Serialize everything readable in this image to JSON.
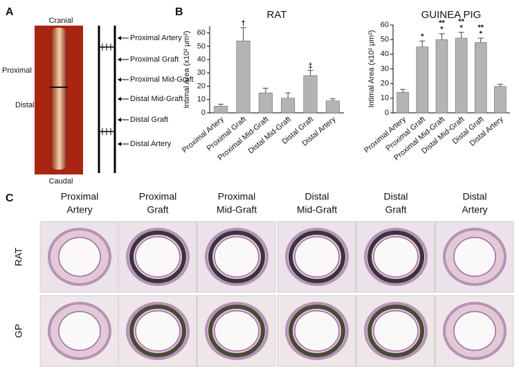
{
  "panel_a": {
    "letter": "A",
    "top": "Cranial",
    "bottom": "Caudal",
    "side_labels": [
      "Proximal",
      "Distal"
    ],
    "segments": [
      "Proximal Artery",
      "Proximal Graft",
      "Proximal Mid-Graft",
      "Distal Mid-Graft",
      "Distal Graft",
      "Distal Artery"
    ]
  },
  "panel_b": {
    "letter": "B"
  },
  "chart_data": [
    {
      "type": "bar",
      "title": "RAT",
      "y_label": "Intimal Area (x10² μm²)",
      "categories": [
        "Proximal Artery",
        "Proximal Graft",
        "Proximal Mid-Graft",
        "Distal Mid-Graft",
        "Distal Graft",
        "Distal Artery"
      ],
      "values": [
        5,
        54,
        15,
        11,
        28,
        9
      ],
      "errors": [
        1.5,
        10,
        3.5,
        4,
        4,
        1.5
      ],
      "annotations": [
        null,
        [
          "†"
        ],
        null,
        null,
        [
          "‡"
        ],
        null
      ],
      "color": "#b4b4b4",
      "ylim": [
        0,
        65
      ],
      "yticks": [
        0,
        10,
        20,
        30,
        40,
        50,
        60
      ]
    },
    {
      "type": "bar",
      "title": "GUINEA PIG",
      "y_label": "Intimal Area (x10² μm²)",
      "categories": [
        "Proximal Artery",
        "Proximal Graft",
        "Proximal Mid-Graft",
        "Distal Mid-Graft",
        "Distal Graft",
        "Distal Artery"
      ],
      "values": [
        14,
        45,
        50,
        51,
        48,
        18
      ],
      "errors": [
        2,
        4,
        4,
        4,
        3,
        1.5
      ],
      "annotations": [
        null,
        [
          "*"
        ],
        [
          "**",
          "*"
        ],
        [
          "**",
          "*"
        ],
        [
          "**",
          "*"
        ],
        null
      ],
      "color": "#b4b4b4",
      "ylim": [
        0,
        60
      ],
      "yticks": [
        0,
        10,
        20,
        30,
        40,
        50,
        60
      ]
    }
  ],
  "panel_c": {
    "letter": "C",
    "columns": [
      [
        "Proximal",
        "Artery"
      ],
      [
        "Proximal",
        "Graft"
      ],
      [
        "Proximal",
        "Mid-Graft"
      ],
      [
        "Distal",
        "Mid-Graft"
      ],
      [
        "Distal",
        "Graft"
      ],
      [
        "Distal",
        "Artery"
      ]
    ],
    "rows": [
      "RAT",
      "GP"
    ]
  }
}
